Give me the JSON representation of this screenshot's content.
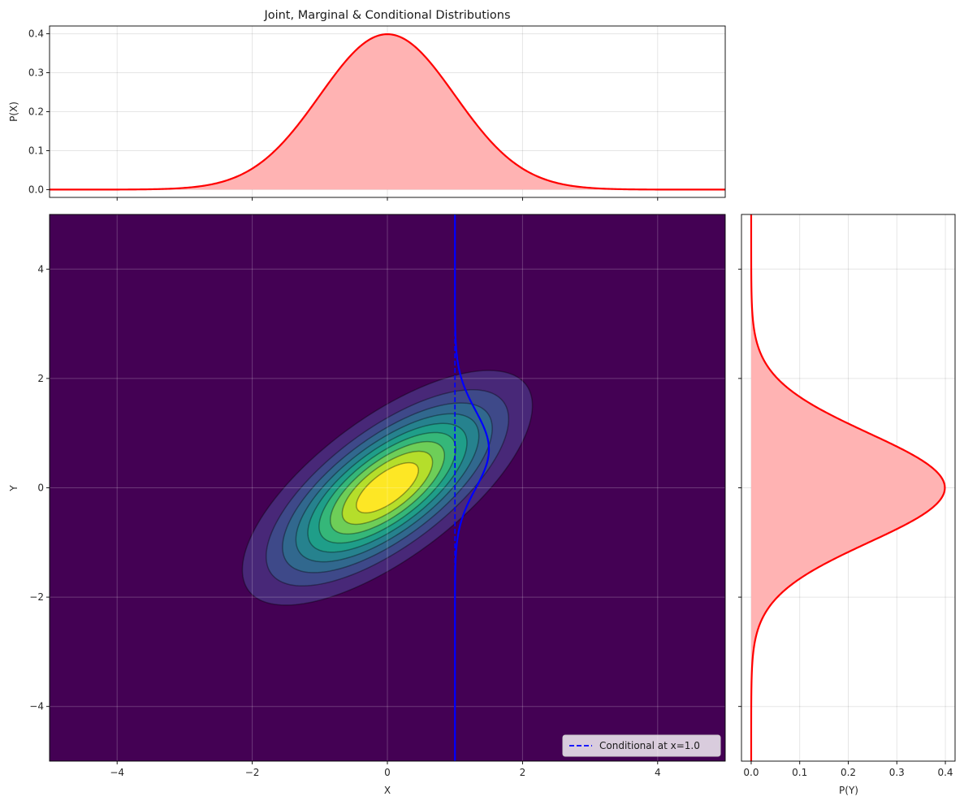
{
  "chart_data": [
    {
      "id": "marginal-x",
      "type": "area",
      "title": "Joint, Marginal & Conditional Distributions",
      "xlabel": "",
      "ylabel": "P(X)",
      "xlim": [
        -5,
        5
      ],
      "ylim": [
        -0.02,
        0.42
      ],
      "yticks": [
        0.0,
        0.1,
        0.2,
        0.3,
        0.4
      ],
      "ytick_labels": [
        "0.0",
        "0.1",
        "0.2",
        "0.3",
        "0.4"
      ],
      "xticks": [
        -4,
        -2,
        0,
        2,
        4
      ],
      "grid": true,
      "series": [
        {
          "distribution": "normal",
          "mean": 0,
          "sd": 1,
          "x_range": [
            -5,
            5
          ],
          "color": "#ff0000",
          "fill": "#ffb3b3"
        }
      ]
    },
    {
      "id": "joint",
      "type": "heatmap",
      "xlabel": "X",
      "ylabel": "Y",
      "xlim": [
        -5,
        5
      ],
      "ylim": [
        -5,
        5
      ],
      "xticks": [
        -4,
        -2,
        0,
        2,
        4
      ],
      "xtick_labels": [
        "−4",
        "−2",
        "0",
        "2",
        "4"
      ],
      "yticks": [
        -4,
        -2,
        0,
        2,
        4
      ],
      "ytick_labels": [
        "−4",
        "−2",
        "0",
        "2",
        "4"
      ],
      "grid": true,
      "distribution": {
        "type": "bivariate-normal",
        "mean": [
          0,
          0
        ],
        "sd": [
          1,
          1
        ],
        "rho": 0.7
      },
      "colormap": [
        "#440154",
        "#482878",
        "#3e4989",
        "#31688e",
        "#26828e",
        "#1f9e89",
        "#35b779",
        "#6ece58",
        "#b5de2b",
        "#fde725"
      ],
      "background": "#440154",
      "conditional": {
        "x": 1.0,
        "mean": 0.7,
        "sd": 0.714,
        "scale": 0.9,
        "y_range": [
          -5,
          5
        ],
        "color": "#0000ff"
      },
      "legend": {
        "position": "bottom-right",
        "entries": [
          "Conditional at x=1.0"
        ]
      }
    },
    {
      "id": "marginal-y",
      "type": "area",
      "xlabel": "P(Y)",
      "ylabel": "",
      "xlim": [
        -0.02,
        0.42
      ],
      "ylim": [
        -5,
        5
      ],
      "xticks": [
        0.0,
        0.1,
        0.2,
        0.3,
        0.4
      ],
      "xtick_labels": [
        "0.0",
        "0.1",
        "0.2",
        "0.3",
        "0.4"
      ],
      "yticks": [
        -4,
        -2,
        0,
        2,
        4
      ],
      "grid": true,
      "series": [
        {
          "distribution": "normal",
          "mean": 0,
          "sd": 1,
          "y_range": [
            -5,
            5
          ],
          "color": "#ff0000",
          "fill": "#ffb3b3"
        }
      ]
    }
  ]
}
